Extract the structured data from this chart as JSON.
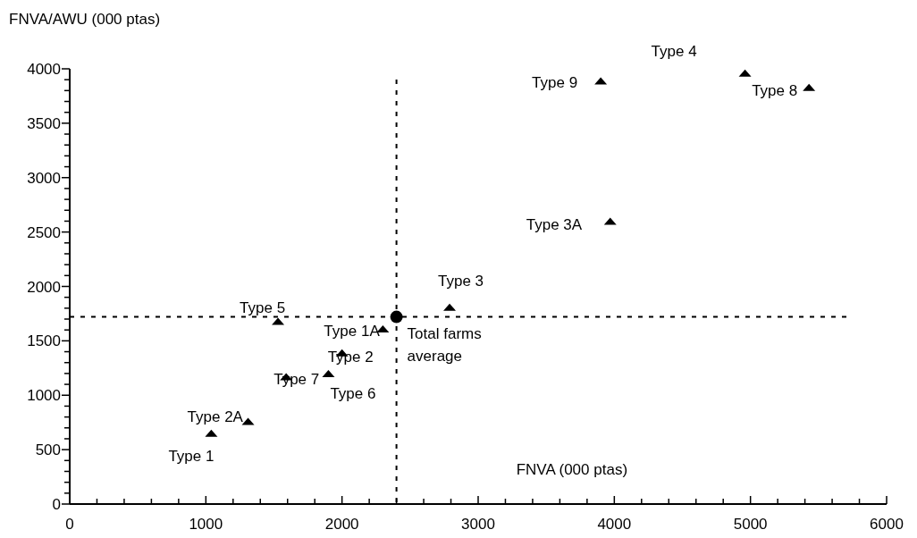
{
  "chart_data": {
    "type": "scatter",
    "xlabel": "FNVA (000 ptas)",
    "ylabel": "FNVA/AWU (000 ptas)",
    "xlim": [
      0,
      6000
    ],
    "ylim": [
      0,
      4000
    ],
    "xticks": [
      0,
      {
        "value": 200,
        "label": null
      },
      {
        "value": 400,
        "label": null
      },
      {
        "value": 600,
        "label": null
      },
      {
        "value": 800,
        "label": null
      },
      1000,
      {
        "value": 1200,
        "label": null
      },
      {
        "value": 1400,
        "label": null
      },
      {
        "value": 1600,
        "label": null
      },
      {
        "value": 1800,
        "label": null
      },
      2000,
      {
        "value": 2200,
        "label": null
      },
      {
        "value": 2400,
        "label": null
      },
      {
        "value": 2600,
        "label": null
      },
      {
        "value": 2800,
        "label": null
      },
      3000,
      {
        "value": 3200,
        "label": null
      },
      {
        "value": 3400,
        "label": null
      },
      {
        "value": 3600,
        "label": null
      },
      {
        "value": 3800,
        "label": null
      },
      4000,
      {
        "value": 4200,
        "label": null
      },
      {
        "value": 4400,
        "label": null
      },
      {
        "value": 4600,
        "label": null
      },
      {
        "value": 4800,
        "label": null
      },
      5000,
      {
        "value": 5200,
        "label": null
      },
      {
        "value": 5400,
        "label": null
      },
      {
        "value": 5600,
        "label": null
      },
      {
        "value": 5800,
        "label": null
      },
      6000
    ],
    "yticks": [
      0,
      {
        "value": 100,
        "label": null
      },
      {
        "value": 200,
        "label": null
      },
      {
        "value": 300,
        "label": null
      },
      {
        "value": 400,
        "label": null
      },
      500,
      {
        "value": 600,
        "label": null
      },
      {
        "value": 700,
        "label": null
      },
      {
        "value": 800,
        "label": null
      },
      {
        "value": 900,
        "label": null
      },
      1000,
      {
        "value": 1100,
        "label": null
      },
      {
        "value": 1200,
        "label": null
      },
      {
        "value": 1300,
        "label": null
      },
      {
        "value": 1400,
        "label": null
      },
      1500,
      {
        "value": 1600,
        "label": null
      },
      {
        "value": 1700,
        "label": null
      },
      {
        "value": 1800,
        "label": null
      },
      {
        "value": 1900,
        "label": null
      },
      2000,
      {
        "value": 2100,
        "label": null
      },
      {
        "value": 2200,
        "label": null
      },
      {
        "value": 2300,
        "label": null
      },
      {
        "value": 2400,
        "label": null
      },
      2500,
      {
        "value": 2600,
        "label": null
      },
      {
        "value": 2700,
        "label": null
      },
      {
        "value": 2800,
        "label": null
      },
      {
        "value": 2900,
        "label": null
      },
      3000,
      {
        "value": 3100,
        "label": null
      },
      {
        "value": 3200,
        "label": null
      },
      {
        "value": 3300,
        "label": null
      },
      {
        "value": 3400,
        "label": null
      },
      3500,
      {
        "value": 3600,
        "label": null
      },
      {
        "value": 3700,
        "label": null
      },
      {
        "value": 3800,
        "label": null
      },
      {
        "value": 3900,
        "label": null
      },
      4000
    ],
    "series": [
      {
        "name": "Type 1",
        "color": "#000000",
        "marker": "triangle",
        "x": [
          1040
        ],
        "values": [
          650
        ]
      },
      {
        "name": "Type 2A",
        "color": "#000000",
        "marker": "triangle",
        "x": [
          1310
        ],
        "values": [
          760
        ]
      },
      {
        "name": "Type 7",
        "color": "#000000",
        "marker": "triangle",
        "x": [
          1590
        ],
        "values": [
          1170
        ]
      },
      {
        "name": "Type 6",
        "color": "#000000",
        "marker": "triangle",
        "x": [
          1900
        ],
        "values": [
          1200
        ]
      },
      {
        "name": "Type 2",
        "color": "#000000",
        "marker": "triangle",
        "x": [
          2000
        ],
        "values": [
          1390
        ]
      },
      {
        "name": "Type 5",
        "color": "#000000",
        "marker": "triangle",
        "x": [
          1530
        ],
        "values": [
          1680
        ]
      },
      {
        "name": "Type 1A",
        "color": "#000000",
        "marker": "triangle",
        "x": [
          2300
        ],
        "values": [
          1610
        ]
      },
      {
        "name": "Type 3",
        "color": "#000000",
        "marker": "triangle",
        "x": [
          2790
        ],
        "values": [
          1810
        ]
      },
      {
        "name": "Type 3A",
        "color": "#000000",
        "marker": "triangle",
        "x": [
          3970
        ],
        "values": [
          2600
        ]
      },
      {
        "name": "Type 9",
        "color": "#000000",
        "marker": "triangle",
        "x": [
          3900
        ],
        "values": [
          3890
        ]
      },
      {
        "name": "Type 4",
        "color": "#000000",
        "marker": "triangle",
        "x": [
          4960
        ],
        "values": [
          3960
        ]
      },
      {
        "name": "Type 8",
        "color": "#000000",
        "marker": "triangle",
        "x": [
          5430
        ],
        "values": [
          3830
        ]
      },
      {
        "name": "Total farms average",
        "color": "#000000",
        "marker": "circle",
        "x": [
          2400
        ],
        "values": [
          1720
        ]
      }
    ],
    "ref_lines": [
      {
        "axis": "x",
        "value": 2400,
        "line_style": "dashed",
        "color": "#000000"
      },
      {
        "axis": "y",
        "value": 1720,
        "line_style": "dashed",
        "color": "#000000"
      }
    ]
  }
}
